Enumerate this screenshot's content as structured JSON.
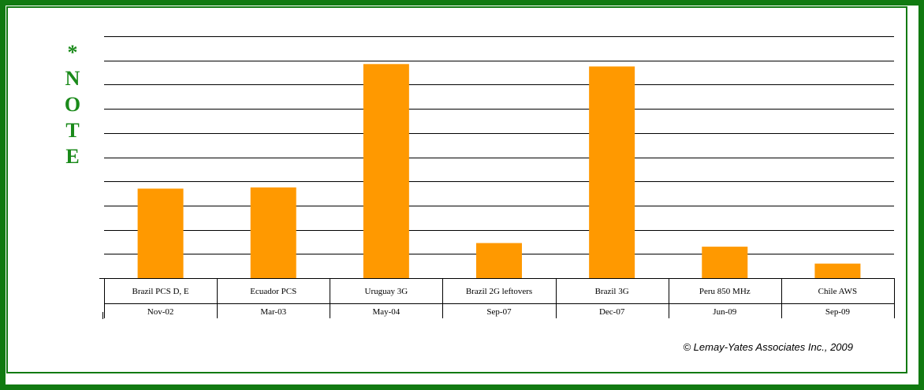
{
  "side_note": [
    "*",
    "N",
    "O",
    "T",
    "E"
  ],
  "copyright": "© Lemay-Yates Associates Inc., 2009",
  "colors": {
    "frame": "#117a11",
    "note": "#1a8a1a",
    "bar": "#ff9900"
  },
  "chart_data": {
    "type": "bar",
    "categories": [
      "Brazil PCS D, E",
      "Ecuador PCS",
      "Uruguay 3G",
      "Brazil 2G leftovers",
      "Brazil 3G",
      "Peru 850 MHz",
      "Chile AWS"
    ],
    "dates": [
      "Nov-02",
      "Mar-03",
      "May-04",
      "Sep-07",
      "Dec-07",
      "Jun-09",
      "Sep-09"
    ],
    "values": [
      3.7,
      3.75,
      8.85,
      1.45,
      8.75,
      1.3,
      0.6
    ],
    "ylim": [
      0,
      10
    ],
    "y_gridlines": 10,
    "grid": true,
    "title": "",
    "xlabel": "",
    "ylabel": ""
  }
}
